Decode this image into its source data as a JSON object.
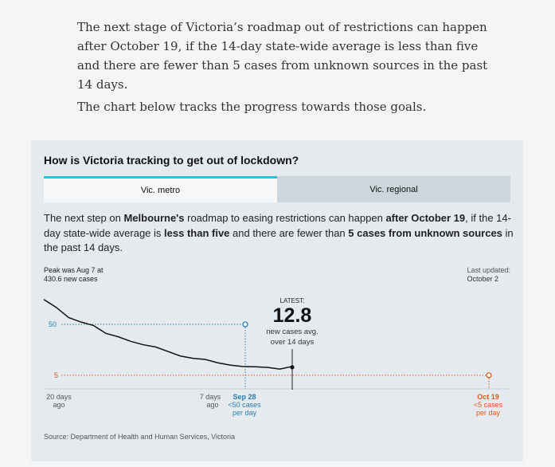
{
  "intro": {
    "p1": "The next stage of Victoria’s roadmap out of restrictions can happen after October 19, if the 14-day state-wide average is less than five and there are fewer than 5 cases from unknown sources in the past 14 days.",
    "p2": "The chart below tracks the progress towards those goals."
  },
  "card": {
    "title": "How is Victoria tracking to get out of lockdown?",
    "tabs": [
      {
        "label": "Vic. metro",
        "active": true
      },
      {
        "label": "Vic. regional",
        "active": false
      }
    ],
    "desc": {
      "t1": "The next step on ",
      "b1": "Melbourne's",
      "t2": " roadmap to easing restrictions can happen ",
      "b2": "after October 19",
      "t3": ", if the 14-day state-wide average is ",
      "b3": "less than five",
      "t4": " and there are fewer than ",
      "b4": "5 cases from unknown sources",
      "t5": " in the past 14 days."
    },
    "peak": {
      "line1": "Peak was Aug 7 at",
      "line2": "430.6 new cases"
    },
    "updated": {
      "line1": "Last updated:",
      "line2": "October 2"
    },
    "latest": {
      "label": "LATEST:",
      "value": "12.8",
      "sub1": "new cases avg.",
      "sub2": "over 14 days"
    },
    "x_labels": {
      "d20_1": "20 days",
      "d20_2": "ago",
      "d7_1": "7 days",
      "d7_2": "ago",
      "sep_1": "Sep 28",
      "sep_2": "<50 cases",
      "sep_3": "per day",
      "oct_1": "Oct 19",
      "oct_2": "<5 cases",
      "oct_3": "per day"
    },
    "source": "Source: Department of Health and Human Services, Victoria"
  },
  "colors": {
    "accent_tab": "#22c3e6",
    "target_blue": "#2a7fb0",
    "target_orange": "#e05a1e"
  },
  "chart_data": {
    "type": "line",
    "series": [
      {
        "x": [
          -20,
          -19,
          -18,
          -17,
          -16,
          -15,
          -14,
          -13,
          -12,
          -11,
          -10,
          -9,
          -8,
          -7,
          -6,
          -5,
          -4,
          -3,
          -2,
          -1,
          0
        ],
        "values": [
          72,
          65,
          56,
          52,
          49,
          42,
          39,
          35,
          32,
          30,
          26,
          22,
          20,
          19,
          16,
          14,
          12.8,
          12.5,
          12.0,
          10.5,
          12.8
        ]
      }
    ],
    "targets": [
      {
        "label": "Sep 28",
        "y": 50
      },
      {
        "label": "Oct 19",
        "y": 5
      }
    ],
    "ytick_labels": [
      "50",
      "5"
    ],
    "ylim": [
      0,
      80
    ]
  }
}
